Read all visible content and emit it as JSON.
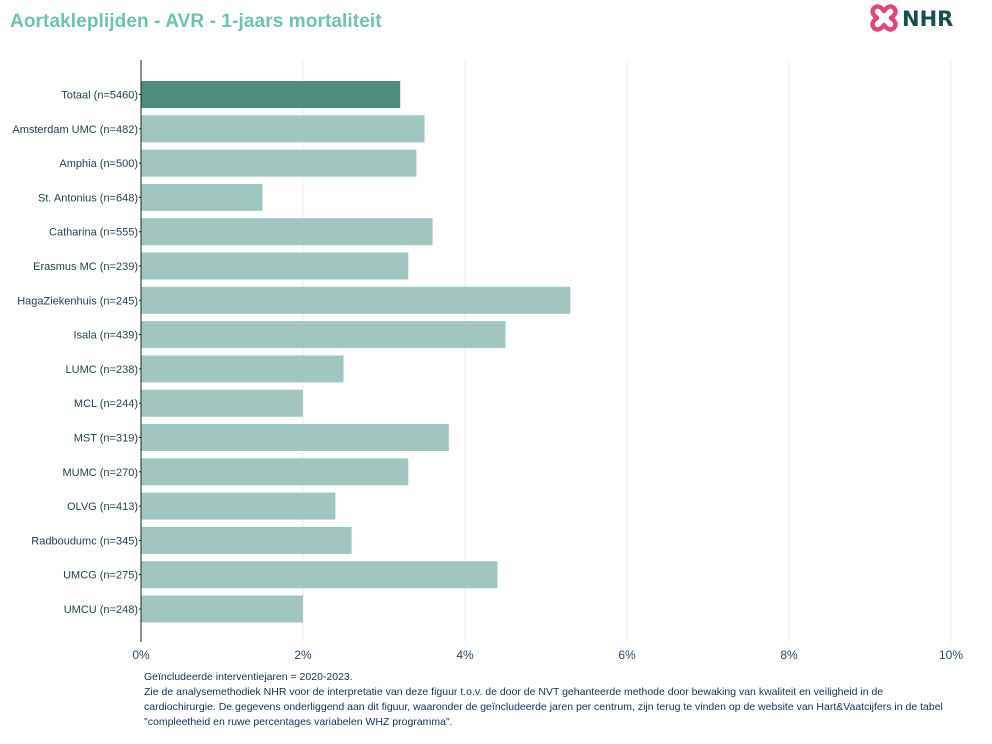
{
  "header": {
    "title": "Aortakleplijden - AVR - 1-jaars mortaliteit",
    "logo_text": "NHR",
    "logo_icon": "nhr-cross-logo-icon"
  },
  "colors": {
    "title": "#6cc3b0",
    "bar_total": "#4e8c7d",
    "bar_center": "#a0c6bf",
    "grid": "#ececec",
    "axis": "#222222",
    "logo_pink": "#e0457b",
    "logo_dark": "#164f4c"
  },
  "chart_data": {
    "type": "bar",
    "orientation": "horizontal",
    "categories": [
      "Totaal (n=5460)",
      "Amsterdam UMC (n=482)",
      "Amphia (n=500)",
      "St. Antonius (n=648)",
      "Catharina (n=555)",
      "Erasmus MC (n=239)",
      "HagaZiekenhuis (n=245)",
      "Isala (n=439)",
      "LUMC (n=238)",
      "MCL (n=244)",
      "MST (n=319)",
      "MUMC (n=270)",
      "OLVG (n=413)",
      "Radboudumc (n=345)",
      "UMCG (n=275)",
      "UMCU (n=248)"
    ],
    "values": [
      3.2,
      3.5,
      3.4,
      1.5,
      3.6,
      3.3,
      5.3,
      4.5,
      2.5,
      2.0,
      3.8,
      3.3,
      2.4,
      2.6,
      4.4,
      2.0
    ],
    "xlim": [
      0,
      10
    ],
    "xticks": [
      0,
      2,
      4,
      6,
      8,
      10
    ],
    "xtick_labels": [
      "0%",
      "2%",
      "4%",
      "6%",
      "8%",
      "10%"
    ],
    "grid": true,
    "highlight_first": true
  },
  "footnote": {
    "line1": "Geïncludeerde interventiejaren = 2020-2023.",
    "line2": "Zie de analysemethodiek NHR voor de interpretatie van deze figuur t.o.v. de door de NVT gehanteerde methode door bewaking van kwaliteit en veiligheid in de cardiochirurgie. De gegevens onderliggend aan dit figuur, waaronder de geïncludeerde jaren per centrum, zijn terug te vinden op de website van Hart&Vaatcijfers in de tabel \"compleetheid en ruwe percentages variabelen WHZ programma\"."
  }
}
